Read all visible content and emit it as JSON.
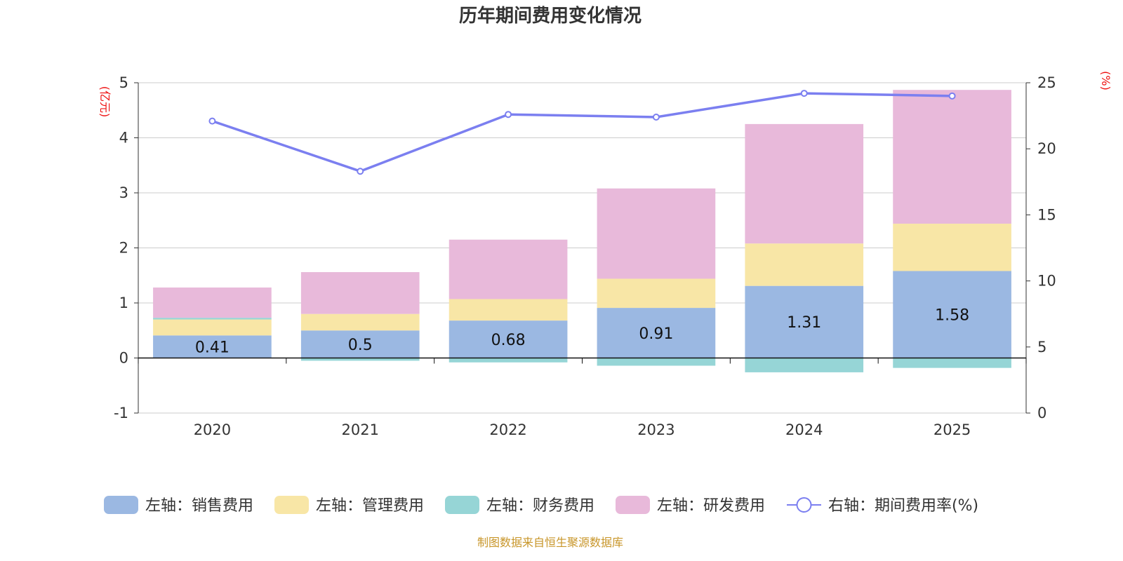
{
  "chart_data": {
    "type": "bar",
    "title": "历年期间费用变化情况",
    "categories": [
      "2020",
      "2021",
      "2022",
      "2023",
      "2024",
      "2025"
    ],
    "left_axis": {
      "unit": "(亿元)",
      "ylim": [
        -1,
        5
      ],
      "ticks": [
        "-1",
        "0",
        "1",
        "2",
        "3",
        "4",
        "5"
      ]
    },
    "right_axis": {
      "unit": "(%)",
      "ylim": [
        0,
        25
      ],
      "ticks": [
        "0",
        "5",
        "10",
        "15",
        "20",
        "25"
      ]
    },
    "series": [
      {
        "name": "左轴：销售费用",
        "axis": "left",
        "type": "bar",
        "color": "#9bb8e2",
        "values": [
          0.41,
          0.5,
          0.68,
          0.91,
          1.31,
          1.58
        ],
        "labels": [
          "0.41",
          "0.5",
          "0.68",
          "0.91",
          "1.31",
          "1.58"
        ]
      },
      {
        "name": "左轴：管理费用",
        "axis": "left",
        "type": "bar",
        "color": "#f8e6a6",
        "values": [
          0.29,
          0.3,
          0.39,
          0.53,
          0.77,
          0.86
        ]
      },
      {
        "name": "左轴：财务费用",
        "axis": "left",
        "type": "bar",
        "color": "#96d5d6",
        "values": [
          0.03,
          -0.05,
          -0.08,
          -0.14,
          -0.26,
          -0.18
        ]
      },
      {
        "name": "左轴：研发费用",
        "axis": "left",
        "type": "bar",
        "color": "#e8b9da",
        "values": [
          0.55,
          0.76,
          1.08,
          1.64,
          2.17,
          2.43
        ]
      },
      {
        "name": "右轴：期间费用率(%)",
        "axis": "right",
        "type": "line",
        "color": "#7b7ff0",
        "values": [
          22.1,
          18.3,
          22.6,
          22.4,
          24.2,
          24.0
        ]
      }
    ],
    "grid": true,
    "legend_position": "bottom"
  },
  "source_note": "制图数据来自恒生聚源数据库"
}
